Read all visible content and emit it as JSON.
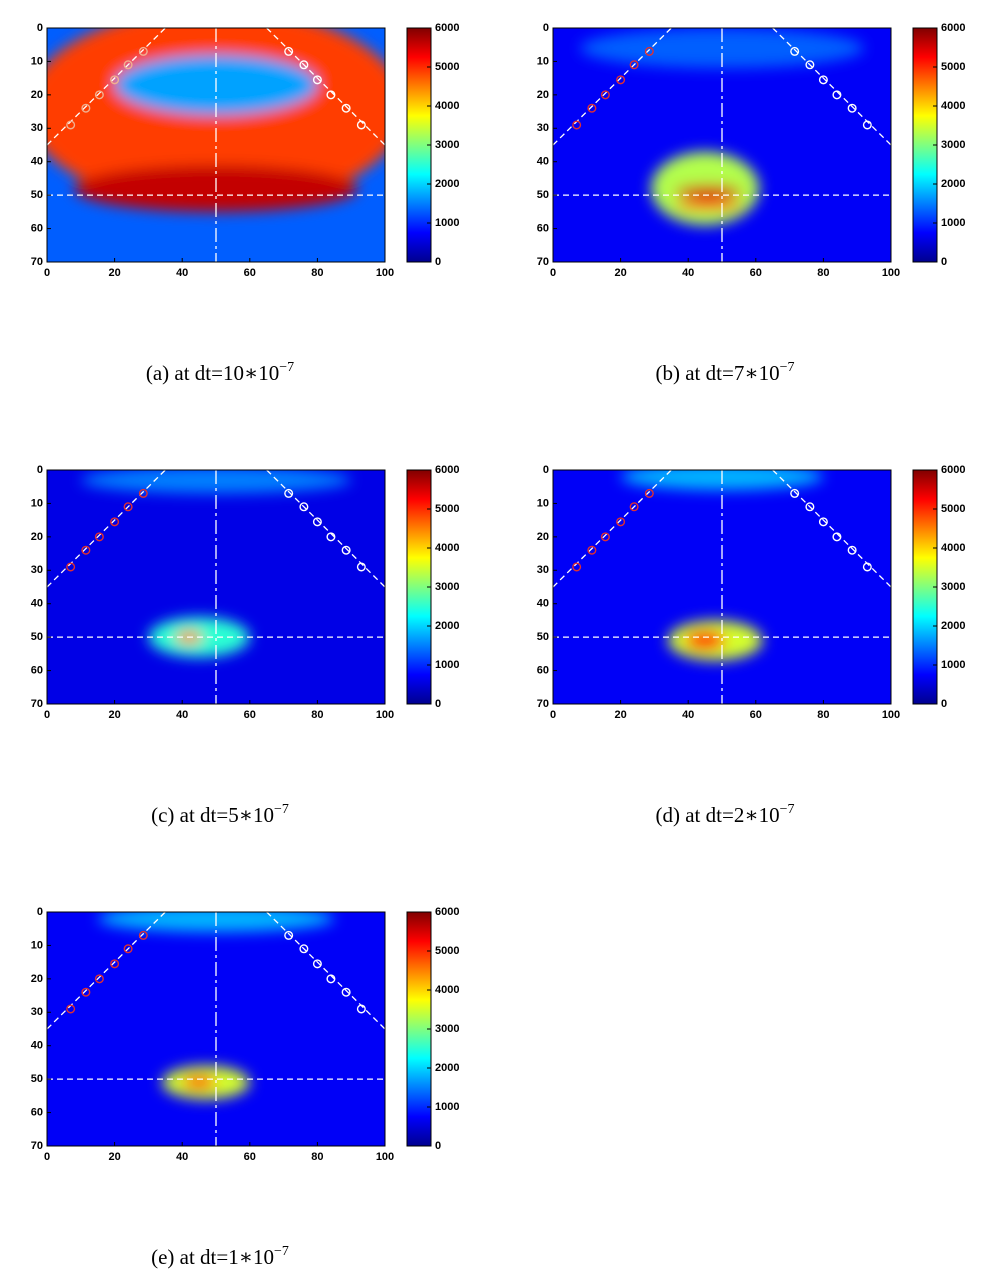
{
  "chart_data": [
    {
      "type": "heatmap",
      "caption": "(a)  at  dt=10∗10",
      "caption_sup": "−7",
      "xlim": [
        0,
        100
      ],
      "ylim": [
        70,
        0
      ],
      "xticks": [
        0,
        20,
        40,
        60,
        80,
        100
      ],
      "yticks": [
        0,
        10,
        20,
        30,
        40,
        50,
        60,
        70
      ],
      "clim": [
        0,
        6000
      ],
      "cticks": [
        0,
        1000,
        2000,
        3000,
        4000,
        5000,
        6000
      ],
      "background": 1300,
      "blobs": [
        {
          "x": 50,
          "y": 24,
          "rx": 56,
          "ry": 30,
          "value": 4900
        },
        {
          "x": 50,
          "y": 17,
          "rx": 30,
          "ry": 9,
          "value": 1700
        },
        {
          "x": 50,
          "y": 48,
          "rx": 42,
          "ry": 7,
          "value": 5600
        }
      ],
      "markers": [
        {
          "color": "#f0b090",
          "x": [
            7,
            11.5,
            15.5,
            20,
            24,
            28.5
          ],
          "y": [
            29,
            24,
            20,
            15.5,
            11,
            7
          ]
        },
        {
          "color": "#ffffff",
          "x": [
            71.5,
            76,
            80,
            84,
            88.5,
            93
          ],
          "y": [
            7,
            11,
            15.5,
            20,
            24,
            29
          ]
        }
      ],
      "hlines": [
        50
      ],
      "vlines": [
        50
      ],
      "dashed_lines": [
        [
          0,
          35,
          35,
          0
        ],
        [
          65,
          0,
          100,
          35
        ]
      ]
    },
    {
      "type": "heatmap",
      "caption": "(b)  at  dt=7∗10",
      "caption_sup": "−7",
      "xlim": [
        0,
        100
      ],
      "ylim": [
        70,
        0
      ],
      "xticks": [
        0,
        20,
        40,
        60,
        80,
        100
      ],
      "yticks": [
        0,
        10,
        20,
        30,
        40,
        50,
        60,
        70
      ],
      "clim": [
        0,
        6000
      ],
      "cticks": [
        0,
        1000,
        2000,
        3000,
        4000,
        5000,
        6000
      ],
      "background": 700,
      "blobs": [
        {
          "x": 50,
          "y": 6,
          "rx": 42,
          "ry": 6,
          "value": 1300
        },
        {
          "x": 45,
          "y": 48,
          "rx": 16,
          "ry": 11,
          "value": 3300
        },
        {
          "x": 46,
          "y": 49,
          "rx": 10,
          "ry": 2,
          "value": 5500
        },
        {
          "x": 46,
          "y": 53,
          "rx": 10,
          "ry": 1.5,
          "value": 5000
        }
      ],
      "markers": [
        {
          "color": "#e03030",
          "x": [
            7,
            11.5,
            15.5,
            20,
            24,
            28.5
          ],
          "y": [
            29,
            24,
            20,
            15.5,
            11,
            7
          ]
        },
        {
          "color": "#ffffff",
          "x": [
            71.5,
            76,
            80,
            84,
            88.5,
            93
          ],
          "y": [
            7,
            11,
            15.5,
            20,
            24,
            29
          ]
        }
      ],
      "hlines": [
        50
      ],
      "vlines": [
        50
      ],
      "dashed_lines": [
        [
          0,
          35,
          35,
          0
        ],
        [
          65,
          0,
          100,
          35
        ]
      ]
    },
    {
      "type": "heatmap",
      "caption": "(c)  at  dt=5∗10",
      "caption_sup": "−7",
      "xlim": [
        0,
        100
      ],
      "ylim": [
        70,
        0
      ],
      "xticks": [
        0,
        20,
        40,
        60,
        80,
        100
      ],
      "yticks": [
        0,
        10,
        20,
        30,
        40,
        50,
        60,
        70
      ],
      "clim": [
        0,
        6000
      ],
      "cticks": [
        0,
        1000,
        2000,
        3000,
        4000,
        5000,
        6000
      ],
      "background": 600,
      "blobs": [
        {
          "x": 50,
          "y": 3,
          "rx": 40,
          "ry": 4,
          "value": 1500
        },
        {
          "x": 45,
          "y": 50,
          "rx": 15,
          "ry": 6,
          "value": 2500
        },
        {
          "x": 42,
          "y": 50,
          "rx": 4,
          "ry": 2,
          "value": 4500
        }
      ],
      "markers": [
        {
          "color": "#e03030",
          "x": [
            7,
            11.5,
            15.5,
            20,
            24,
            28.5
          ],
          "y": [
            29,
            24,
            20,
            15.5,
            11,
            7
          ]
        },
        {
          "color": "#ffffff",
          "x": [
            71.5,
            76,
            80,
            84,
            88.5,
            93
          ],
          "y": [
            7,
            11,
            15.5,
            20,
            24,
            29
          ]
        }
      ],
      "hlines": [
        50
      ],
      "vlines": [
        50
      ],
      "dashed_lines": [
        [
          0,
          35,
          35,
          0
        ],
        [
          65,
          0,
          100,
          35
        ]
      ]
    },
    {
      "type": "heatmap",
      "caption": "(d)  at  dt=2∗10",
      "caption_sup": "−7",
      "xlim": [
        0,
        100
      ],
      "ylim": [
        70,
        0
      ],
      "xticks": [
        0,
        20,
        40,
        60,
        80,
        100
      ],
      "yticks": [
        0,
        10,
        20,
        30,
        40,
        50,
        60,
        70
      ],
      "clim": [
        0,
        6000
      ],
      "cticks": [
        0,
        1000,
        2000,
        3000,
        4000,
        5000,
        6000
      ],
      "background": 700,
      "blobs": [
        {
          "x": 50,
          "y": 2,
          "rx": 30,
          "ry": 4,
          "value": 1800
        },
        {
          "x": 48,
          "y": 51,
          "rx": 14,
          "ry": 6,
          "value": 3500
        },
        {
          "x": 45,
          "y": 51,
          "rx": 6,
          "ry": 3,
          "value": 5000
        }
      ],
      "markers": [
        {
          "color": "#e03030",
          "x": [
            7,
            11.5,
            15.5,
            20,
            24,
            28.5
          ],
          "y": [
            29,
            24,
            20,
            15.5,
            11,
            7
          ]
        },
        {
          "color": "#ffffff",
          "x": [
            71.5,
            76,
            80,
            84,
            88.5,
            93
          ],
          "y": [
            7,
            11,
            15.5,
            20,
            24,
            29
          ]
        }
      ],
      "hlines": [
        50
      ],
      "vlines": [
        50
      ],
      "dashed_lines": [
        [
          0,
          35,
          35,
          0
        ],
        [
          65,
          0,
          100,
          35
        ]
      ]
    },
    {
      "type": "heatmap",
      "caption": "(e)  at  dt=1∗10",
      "caption_sup": "−7",
      "xlim": [
        0,
        100
      ],
      "ylim": [
        70,
        0
      ],
      "xticks": [
        0,
        20,
        40,
        60,
        80,
        100
      ],
      "yticks": [
        0,
        10,
        20,
        30,
        40,
        50,
        60,
        70
      ],
      "clim": [
        0,
        6000
      ],
      "cticks": [
        0,
        1000,
        2000,
        3000,
        4000,
        5000,
        6000
      ],
      "background": 700,
      "blobs": [
        {
          "x": 50,
          "y": 2,
          "rx": 35,
          "ry": 4,
          "value": 1800
        },
        {
          "x": 47,
          "y": 51,
          "rx": 13,
          "ry": 5,
          "value": 3500
        },
        {
          "x": 45,
          "y": 51,
          "rx": 5,
          "ry": 2,
          "value": 5200
        }
      ],
      "markers": [
        {
          "color": "#e03030",
          "x": [
            7,
            11.5,
            15.5,
            20,
            24,
            28.5
          ],
          "y": [
            29,
            24,
            20,
            15.5,
            11,
            7
          ]
        },
        {
          "color": "#ffffff",
          "x": [
            71.5,
            76,
            80,
            84,
            88.5,
            93
          ],
          "y": [
            7,
            11,
            15.5,
            20,
            24,
            29
          ]
        }
      ],
      "hlines": [
        50
      ],
      "vlines": [
        50
      ],
      "dashed_lines": [
        [
          0,
          35,
          35,
          0
        ],
        [
          65,
          0,
          100,
          35
        ]
      ]
    }
  ]
}
